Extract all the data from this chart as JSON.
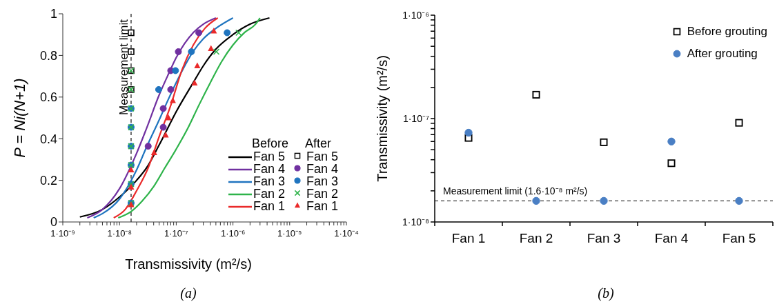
{
  "chart_data": [
    {
      "type": "line",
      "xlabel": "Transmissivity (m²/s)",
      "ylabel": "P = Ni(N+1)",
      "log": "x",
      "xlim": [
        1e-09,
        0.0001
      ],
      "xticks": [
        {
          "value": 1e-09,
          "label": "1·10⁻⁹"
        },
        {
          "value": 2e-09,
          "label": null
        },
        {
          "value": 3e-09,
          "label": null
        },
        {
          "value": 4e-09,
          "label": null
        },
        {
          "value": 5e-09,
          "label": null
        },
        {
          "value": 6e-09,
          "label": null
        },
        {
          "value": 7e-09,
          "label": null
        },
        {
          "value": 8e-09,
          "label": null
        },
        {
          "value": 9e-09,
          "label": null
        },
        {
          "value": 1e-08,
          "label": "1·10⁻⁸"
        },
        {
          "value": 2e-08,
          "label": null
        },
        {
          "value": 3e-08,
          "label": null
        },
        {
          "value": 4e-08,
          "label": null
        },
        {
          "value": 5e-08,
          "label": null
        },
        {
          "value": 6e-08,
          "label": null
        },
        {
          "value": 7e-08,
          "label": null
        },
        {
          "value": 8e-08,
          "label": null
        },
        {
          "value": 9e-08,
          "label": null
        },
        {
          "value": 1e-07,
          "label": "1·10⁻⁷"
        },
        {
          "value": 2e-07,
          "label": null
        },
        {
          "value": 3e-07,
          "label": null
        },
        {
          "value": 4e-07,
          "label": null
        },
        {
          "value": 5e-07,
          "label": null
        },
        {
          "value": 6e-07,
          "label": null
        },
        {
          "value": 7e-07,
          "label": null
        },
        {
          "value": 8e-07,
          "label": null
        },
        {
          "value": 9e-07,
          "label": null
        },
        {
          "value": 1e-06,
          "label": "1·10⁻⁶"
        },
        {
          "value": 2e-06,
          "label": null
        },
        {
          "value": 3e-06,
          "label": null
        },
        {
          "value": 4e-06,
          "label": null
        },
        {
          "value": 5e-06,
          "label": null
        },
        {
          "value": 6e-06,
          "label": null
        },
        {
          "value": 7e-06,
          "label": null
        },
        {
          "value": 8e-06,
          "label": null
        },
        {
          "value": 9e-06,
          "label": null
        },
        {
          "value": 1e-05,
          "label": "1·10⁻⁵"
        },
        {
          "value": 2e-05,
          "label": null
        },
        {
          "value": 3e-05,
          "label": null
        },
        {
          "value": 4e-05,
          "label": null
        },
        {
          "value": 5e-05,
          "label": null
        },
        {
          "value": 6e-05,
          "label": null
        },
        {
          "value": 7e-05,
          "label": null
        },
        {
          "value": 8e-05,
          "label": null
        },
        {
          "value": 9e-05,
          "label": null
        },
        {
          "value": 0.0001,
          "label": "1·10⁻⁴"
        }
      ],
      "ylim": [
        0,
        1
      ],
      "yticks": [
        0,
        0.2,
        0.4,
        0.6,
        0.8,
        1
      ],
      "legend": "bottom right",
      "annotations": [
        "Before",
        "After",
        "(a)"
      ],
      "ref_lines": [
        {
          "axis": "x",
          "value": 1.6e-08,
          "label": "Measurement limit",
          "line_style": "dashed",
          "color": "#404040"
        }
      ],
      "series": [
        {
          "type": "line",
          "name": "Fan 5",
          "color": "#000000",
          "x": [
            2e-09,
            5e-09,
            1e-08,
            2e-08,
            3e-08,
            5e-08,
            1e-07,
            2e-07,
            3e-07,
            5e-07,
            1e-06,
            2e-06,
            4.4e-06
          ],
          "values": [
            0.024,
            0.06,
            0.12,
            0.2,
            0.26,
            0.37,
            0.53,
            0.67,
            0.75,
            0.83,
            0.9,
            0.95,
            0.98
          ]
        },
        {
          "type": "line",
          "name": "Fan 4",
          "color": "#7030a0",
          "x": [
            2.7e-09,
            5e-09,
            1e-08,
            2e-08,
            3e-08,
            5e-08,
            7e-08,
            1e-07,
            2e-07,
            3e-07,
            5e-07
          ],
          "values": [
            0.02,
            0.06,
            0.16,
            0.33,
            0.45,
            0.61,
            0.7,
            0.79,
            0.91,
            0.95,
            0.98
          ]
        },
        {
          "type": "line",
          "name": "Fan 3",
          "color": "#1f74bf",
          "x": [
            3.5e-09,
            5e-09,
            1e-08,
            2e-08,
            3e-08,
            5e-08,
            7e-08,
            1e-07,
            2e-07,
            3e-07,
            5e-07,
            1e-06
          ],
          "values": [
            0.02,
            0.04,
            0.11,
            0.25,
            0.36,
            0.49,
            0.58,
            0.67,
            0.82,
            0.88,
            0.93,
            0.98
          ]
        },
        {
          "type": "line",
          "name": "Fan 2",
          "color": "#2eb34a",
          "x": [
            9.5e-09,
            1.6e-08,
            2.5e-08,
            4e-08,
            6.3e-08,
            1e-07,
            1.6e-07,
            2.5e-07,
            4e-07,
            6.3e-07,
            1e-06,
            1.6e-06,
            2.5e-06,
            3e-06
          ],
          "values": [
            0.02,
            0.05,
            0.1,
            0.17,
            0.26,
            0.35,
            0.45,
            0.56,
            0.67,
            0.77,
            0.85,
            0.91,
            0.95,
            0.98
          ]
        },
        {
          "type": "line",
          "name": "Fan 1",
          "color": "#ea2a2a",
          "x": [
            7.9e-09,
            1.26e-08,
            2e-08,
            3.2e-08,
            5e-08,
            8e-08,
            1.26e-07,
            2e-07,
            3.2e-07,
            5.4e-07
          ],
          "values": [
            0.02,
            0.06,
            0.15,
            0.26,
            0.41,
            0.56,
            0.73,
            0.85,
            0.93,
            0.98
          ]
        },
        {
          "type": "scatter",
          "name": "Fan 5",
          "color": "#000000",
          "marker": "square",
          "x": [
            1.6e-08,
            1.6e-08,
            1.6e-08,
            1.6e-08
          ],
          "values": [
            0.636,
            0.727,
            0.818,
            0.909
          ]
        },
        {
          "type": "scatter",
          "name": "Fan 4",
          "color": "#7030a0",
          "marker": "circle",
          "x": [
            3.2e-08,
            5.9e-08,
            5.9e-08,
            8e-08,
            8e-08,
            1.09e-07,
            2.5e-07
          ],
          "values": [
            0.364,
            0.455,
            0.545,
            0.636,
            0.727,
            0.818,
            0.909
          ]
        },
        {
          "type": "scatter",
          "name": "Fan 3",
          "color": "#1f74bf",
          "marker": "circle",
          "x": [
            1.6e-08,
            1.6e-08,
            1.6e-08,
            1.6e-08,
            1.6e-08,
            1.6e-08,
            4.9e-08,
            9.7e-08,
            1.85e-07,
            7.9e-07
          ],
          "values": [
            0.091,
            0.182,
            0.273,
            0.364,
            0.455,
            0.545,
            0.636,
            0.727,
            0.818,
            0.909
          ]
        },
        {
          "type": "scatter",
          "name": "Fan 2",
          "color": "#2eb34a",
          "marker": "cross",
          "x": [
            1.6e-08,
            1.6e-08,
            1.6e-08,
            1.6e-08,
            1.6e-08,
            1.6e-08,
            1.6e-08,
            1.6e-08,
            5.1e-07,
            1.26e-06
          ],
          "values": [
            0.091,
            0.182,
            0.273,
            0.364,
            0.455,
            0.545,
            0.636,
            0.727,
            0.818,
            0.909
          ]
        },
        {
          "type": "scatter",
          "name": "Fan 1",
          "color": "#ea2a2a",
          "marker": "triangle",
          "x": [
            1.6e-08,
            1.6e-08,
            1.6e-08,
            4.07e-08,
            6.5e-08,
            7.3e-08,
            8.7e-08,
            2.1e-07,
            2.35e-07,
            4.1e-07,
            4.6e-07
          ],
          "values": [
            0.083,
            0.167,
            0.25,
            0.333,
            0.417,
            0.5,
            0.583,
            0.667,
            0.75,
            0.833,
            0.917
          ]
        }
      ]
    },
    {
      "type": "scatter",
      "categories": [
        "Fan 1",
        "Fan 2",
        "Fan 3",
        "Fan 4",
        "Fan 5"
      ],
      "ylabel": "Transmissivity (m²/s)",
      "log": "y",
      "ylim": [
        1e-08,
        1e-06
      ],
      "yticks": [
        {
          "value": 1e-08,
          "label": "1·10⁻⁸"
        },
        {
          "value": 2e-08,
          "label": null
        },
        {
          "value": 3e-08,
          "label": null
        },
        {
          "value": 4e-08,
          "label": null
        },
        {
          "value": 5e-08,
          "label": null
        },
        {
          "value": 6e-08,
          "label": null
        },
        {
          "value": 7e-08,
          "label": null
        },
        {
          "value": 8e-08,
          "label": null
        },
        {
          "value": 9e-08,
          "label": null
        },
        {
          "value": 1e-07,
          "label": "1·10⁻⁷"
        },
        {
          "value": 2e-07,
          "label": null
        },
        {
          "value": 3e-07,
          "label": null
        },
        {
          "value": 4e-07,
          "label": null
        },
        {
          "value": 5e-07,
          "label": null
        },
        {
          "value": 6e-07,
          "label": null
        },
        {
          "value": 7e-07,
          "label": null
        },
        {
          "value": 8e-07,
          "label": null
        },
        {
          "value": 9e-07,
          "label": null
        },
        {
          "value": 1e-06,
          "label": "1·10⁻⁶"
        }
      ],
      "legend": "top right",
      "annotations": [
        "(b)"
      ],
      "ref_lines": [
        {
          "axis": "y",
          "value": 1.6e-08,
          "label": "Measurement limit (1.6·10⁻⁸  m²/s)",
          "line_style": "dashed",
          "color": "#000000"
        }
      ],
      "series": [
        {
          "name": "Before grouting",
          "color": "#000000",
          "marker": "square",
          "values": [
            6.5e-08,
            1.7e-07,
            5.9e-08,
            3.7e-08,
            9.1e-08
          ]
        },
        {
          "name": "After grouting",
          "color": "#4a7fc4",
          "marker": "circle",
          "values": [
            7.3e-08,
            1.6e-08,
            1.6e-08,
            6e-08,
            1.6e-08
          ]
        }
      ]
    }
  ]
}
